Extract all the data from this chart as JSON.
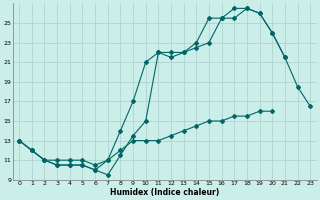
{
  "xlabel": "Humidex (Indice chaleur)",
  "background_color": "#cceee8",
  "grid_color": "#aacccc",
  "line_color": "#006666",
  "ylim": [
    9,
    27
  ],
  "xlim": [
    -0.5,
    23.5
  ],
  "yticks": [
    9,
    11,
    13,
    15,
    17,
    19,
    21,
    23,
    25
  ],
  "xticks": [
    0,
    1,
    2,
    3,
    4,
    5,
    6,
    7,
    8,
    9,
    10,
    11,
    12,
    13,
    14,
    15,
    16,
    17,
    18,
    19,
    20,
    21,
    22,
    23
  ],
  "series1_x": [
    0,
    1,
    2,
    3,
    4,
    5,
    6,
    7,
    8,
    9,
    10,
    11,
    12,
    13,
    14,
    15,
    16,
    17,
    18,
    19,
    20,
    21,
    22,
    23
  ],
  "series1_y": [
    13,
    12,
    11,
    10.5,
    10.5,
    10.5,
    10,
    9.5,
    11.5,
    13.5,
    15,
    22,
    22,
    22,
    23,
    25.5,
    25.5,
    26.5,
    26.5,
    26,
    24,
    21.5,
    18.5,
    16.5
  ],
  "series2_x": [
    0,
    1,
    2,
    3,
    4,
    5,
    6,
    7,
    8,
    9,
    10,
    11,
    12,
    13,
    14,
    15,
    16,
    17,
    18,
    19,
    20,
    21
  ],
  "series2_y": [
    13,
    12,
    11,
    10.5,
    10.5,
    10.5,
    10,
    11,
    14,
    17,
    21,
    22,
    21.5,
    22,
    22.5,
    23,
    25.5,
    25.5,
    26.5,
    26,
    24,
    21.5
  ],
  "series3_x": [
    0,
    1,
    2,
    3,
    4,
    5,
    6,
    7,
    8,
    9,
    10,
    11,
    12,
    13,
    14,
    15,
    16,
    17,
    18,
    19,
    20
  ],
  "series3_y": [
    13,
    12,
    11,
    11,
    11,
    11,
    10.5,
    11,
    12,
    13,
    13,
    13,
    13.5,
    14,
    14.5,
    15,
    15,
    15.5,
    15.5,
    16,
    16
  ]
}
